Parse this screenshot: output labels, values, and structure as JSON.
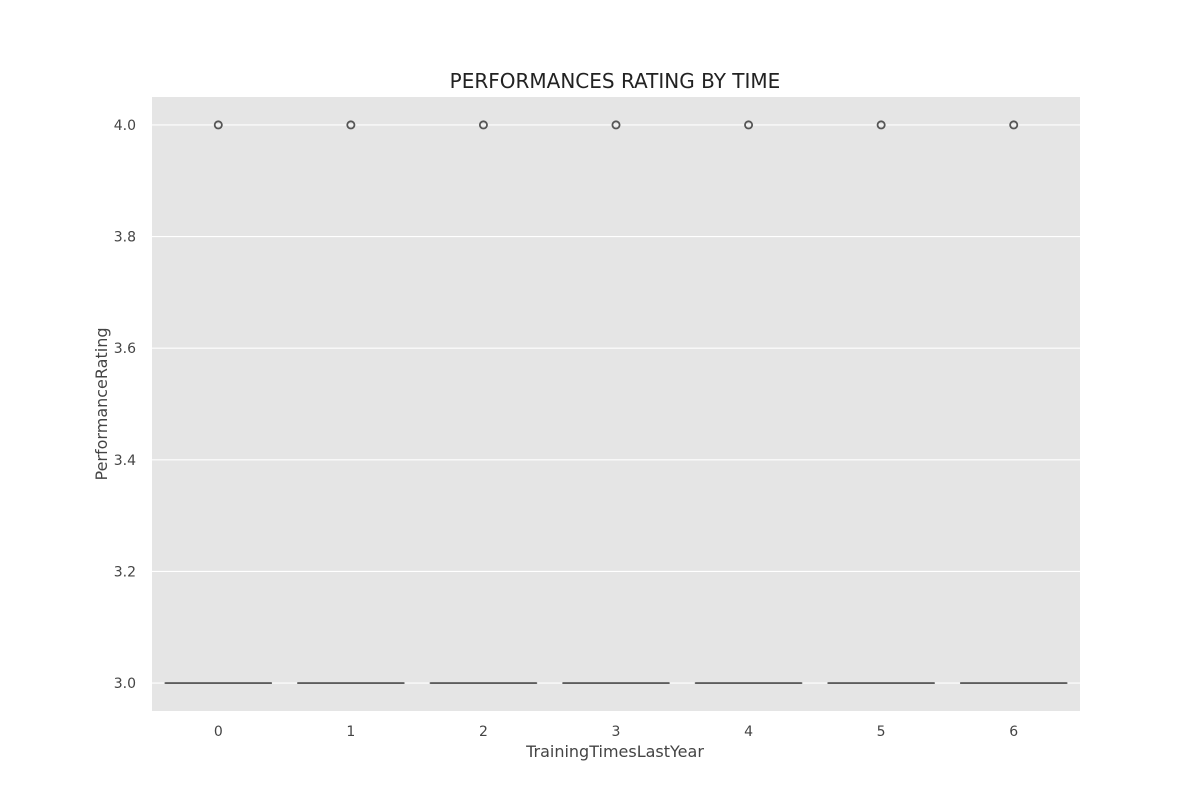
{
  "chart_data": {
    "type": "box",
    "title": "PERFORMANCES RATING BY TIME",
    "xlabel": "TrainingTimesLastYear",
    "ylabel": "PerformanceRating",
    "categories": [
      "0",
      "1",
      "2",
      "3",
      "4",
      "5",
      "6"
    ],
    "ylim": [
      2.95,
      4.05
    ],
    "yticks": [
      3.0,
      3.2,
      3.4,
      3.6,
      3.8,
      4.0
    ],
    "ytick_labels": [
      "3.0",
      "3.2",
      "3.4",
      "3.6",
      "3.8",
      "4.0"
    ],
    "grid": true,
    "boxes": [
      {
        "category": "0",
        "q1": 3.0,
        "median": 3.0,
        "q3": 3.0,
        "whisker_low": 3.0,
        "whisker_high": 3.0,
        "outliers": [
          4.0
        ]
      },
      {
        "category": "1",
        "q1": 3.0,
        "median": 3.0,
        "q3": 3.0,
        "whisker_low": 3.0,
        "whisker_high": 3.0,
        "outliers": [
          4.0
        ]
      },
      {
        "category": "2",
        "q1": 3.0,
        "median": 3.0,
        "q3": 3.0,
        "whisker_low": 3.0,
        "whisker_high": 3.0,
        "outliers": [
          4.0
        ]
      },
      {
        "category": "3",
        "q1": 3.0,
        "median": 3.0,
        "q3": 3.0,
        "whisker_low": 3.0,
        "whisker_high": 3.0,
        "outliers": [
          4.0
        ]
      },
      {
        "category": "4",
        "q1": 3.0,
        "median": 3.0,
        "q3": 3.0,
        "whisker_low": 3.0,
        "whisker_high": 3.0,
        "outliers": [
          4.0
        ]
      },
      {
        "category": "5",
        "q1": 3.0,
        "median": 3.0,
        "q3": 3.0,
        "whisker_low": 3.0,
        "whisker_high": 3.0,
        "outliers": [
          4.0
        ]
      },
      {
        "category": "6",
        "q1": 3.0,
        "median": 3.0,
        "q3": 3.0,
        "whisker_low": 3.0,
        "whisker_high": 3.0,
        "outliers": [
          4.0
        ]
      }
    ],
    "colors": {
      "background": "#e5e5e5",
      "grid": "#ffffff",
      "box_edge": "#555555"
    }
  }
}
